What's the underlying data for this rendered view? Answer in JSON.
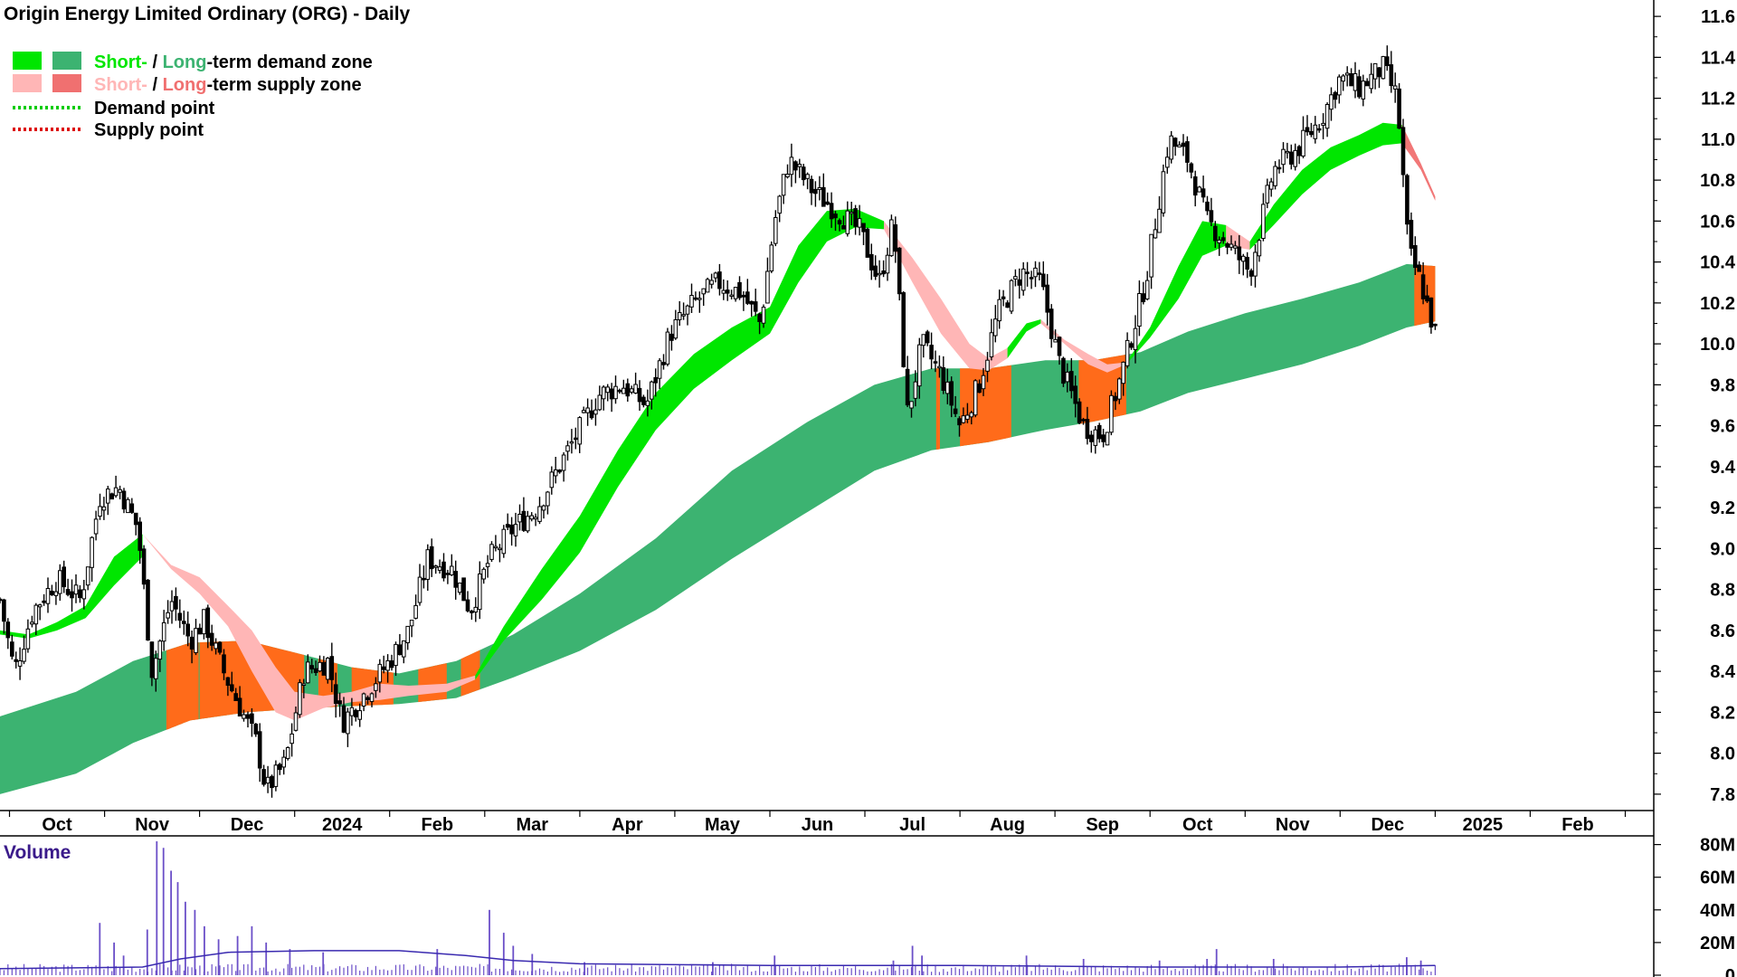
{
  "title": "Origin Energy Limited Ordinary (ORG) - Daily",
  "legend": {
    "demand_short": "Short-",
    "demand_sep": " / ",
    "demand_long": "Long",
    "demand_rest": "-term demand zone",
    "supply_short": "Short-",
    "supply_sep": " / ",
    "supply_long": "Long",
    "supply_rest": "-term supply zone",
    "demand_point": "Demand point",
    "supply_point": "Supply point"
  },
  "volume_label": "Volume",
  "colors": {
    "short_demand": "#00e600",
    "long_demand": "#3cb371",
    "short_supply": "#ffb6b6",
    "long_supply": "#f07070",
    "overlap_supply": "#ff6b1a",
    "demand_point": "#00cc00",
    "supply_point": "#dd0000",
    "candle": "#000000",
    "volume_bar": "#6b4fc8",
    "volume_avg": "#3a2ab0"
  },
  "chart_data": {
    "type": "candlestick",
    "title": "Origin Energy Limited Ordinary (ORG) - Daily",
    "x_tick_labels": [
      "Oct",
      "Nov",
      "Dec",
      "2024",
      "Feb",
      "Mar",
      "Apr",
      "May",
      "Jun",
      "Jul",
      "Aug",
      "Sep",
      "Oct",
      "Nov",
      "Dec",
      "2025",
      "Feb"
    ],
    "y_tick_labels": [
      "7.8",
      "8.0",
      "8.2",
      "8.4",
      "8.6",
      "8.8",
      "9.0",
      "9.2",
      "9.4",
      "9.6",
      "9.8",
      "10.0",
      "10.2",
      "10.4",
      "10.6",
      "10.8",
      "11.0",
      "11.2",
      "11.4",
      "11.6"
    ],
    "ylim": [
      7.72,
      11.68
    ],
    "x_range_months": [
      8.9,
      26.3
    ],
    "price_path": [
      {
        "t": 8.9,
        "p": 8.75
      },
      {
        "t": 9.05,
        "p": 8.4
      },
      {
        "t": 9.25,
        "p": 8.7
      },
      {
        "t": 9.5,
        "p": 8.85
      },
      {
        "t": 9.75,
        "p": 8.75
      },
      {
        "t": 9.95,
        "p": 9.25
      },
      {
        "t": 10.15,
        "p": 9.3
      },
      {
        "t": 10.35,
        "p": 9.1
      },
      {
        "t": 10.5,
        "p": 8.4
      },
      {
        "t": 10.7,
        "p": 8.75
      },
      {
        "t": 10.9,
        "p": 8.55
      },
      {
        "t": 11.05,
        "p": 8.65
      },
      {
        "t": 11.25,
        "p": 8.4
      },
      {
        "t": 11.6,
        "p": 8.05
      },
      {
        "t": 11.7,
        "p": 7.82
      },
      {
        "t": 11.9,
        "p": 7.95
      },
      {
        "t": 12.1,
        "p": 8.4
      },
      {
        "t": 12.35,
        "p": 8.45
      },
      {
        "t": 12.5,
        "p": 8.15
      },
      {
        "t": 12.75,
        "p": 8.3
      },
      {
        "t": 13.0,
        "p": 8.45
      },
      {
        "t": 13.2,
        "p": 8.6
      },
      {
        "t": 13.4,
        "p": 8.95
      },
      {
        "t": 13.65,
        "p": 8.9
      },
      {
        "t": 13.85,
        "p": 8.7
      },
      {
        "t": 14.05,
        "p": 8.95
      },
      {
        "t": 14.3,
        "p": 9.1
      },
      {
        "t": 14.55,
        "p": 9.2
      },
      {
        "t": 14.9,
        "p": 9.5
      },
      {
        "t": 15.2,
        "p": 9.75
      },
      {
        "t": 15.45,
        "p": 9.8
      },
      {
        "t": 15.7,
        "p": 9.7
      },
      {
        "t": 15.95,
        "p": 10.05
      },
      {
        "t": 16.2,
        "p": 10.2
      },
      {
        "t": 16.45,
        "p": 10.3
      },
      {
        "t": 16.7,
        "p": 10.25
      },
      {
        "t": 16.9,
        "p": 10.1
      },
      {
        "t": 17.05,
        "p": 10.6
      },
      {
        "t": 17.2,
        "p": 10.9
      },
      {
        "t": 17.45,
        "p": 10.75
      },
      {
        "t": 17.7,
        "p": 10.65
      },
      {
        "t": 17.95,
        "p": 10.55
      },
      {
        "t": 18.15,
        "p": 10.3
      },
      {
        "t": 18.3,
        "p": 10.6
      },
      {
        "t": 18.45,
        "p": 9.65
      },
      {
        "t": 18.6,
        "p": 10.0
      },
      {
        "t": 18.8,
        "p": 9.85
      },
      {
        "t": 19.0,
        "p": 9.6
      },
      {
        "t": 19.2,
        "p": 9.8
      },
      {
        "t": 19.4,
        "p": 10.15
      },
      {
        "t": 19.65,
        "p": 10.35
      },
      {
        "t": 19.85,
        "p": 10.3
      },
      {
        "t": 20.05,
        "p": 9.9
      },
      {
        "t": 20.3,
        "p": 9.6
      },
      {
        "t": 20.5,
        "p": 9.55
      },
      {
        "t": 20.7,
        "p": 9.85
      },
      {
        "t": 20.95,
        "p": 10.3
      },
      {
        "t": 21.2,
        "p": 11.0
      },
      {
        "t": 21.4,
        "p": 10.9
      },
      {
        "t": 21.6,
        "p": 10.6
      },
      {
        "t": 21.8,
        "p": 10.5
      },
      {
        "t": 22.05,
        "p": 10.35
      },
      {
        "t": 22.3,
        "p": 10.85
      },
      {
        "t": 22.55,
        "p": 10.95
      },
      {
        "t": 22.8,
        "p": 11.1
      },
      {
        "t": 23.0,
        "p": 11.3
      },
      {
        "t": 23.2,
        "p": 11.25
      },
      {
        "t": 23.45,
        "p": 11.35
      },
      {
        "t": 23.6,
        "p": 11.2
      },
      {
        "t": 23.72,
        "p": 10.45
      },
      {
        "t": 23.85,
        "p": 10.3
      },
      {
        "t": 24.0,
        "p": 10.05
      }
    ],
    "long_zone": [
      {
        "t": 8.9,
        "lo": 7.8,
        "hi": 8.18
      },
      {
        "t": 9.7,
        "lo": 7.9,
        "hi": 8.3
      },
      {
        "t": 10.3,
        "lo": 8.05,
        "hi": 8.45
      },
      {
        "t": 10.9,
        "lo": 8.16,
        "hi": 8.54
      },
      {
        "t": 11.5,
        "lo": 8.2,
        "hi": 8.55
      },
      {
        "t": 12.1,
        "lo": 8.22,
        "hi": 8.48
      },
      {
        "t": 12.6,
        "lo": 8.23,
        "hi": 8.42
      },
      {
        "t": 13.1,
        "lo": 8.24,
        "hi": 8.39
      },
      {
        "t": 13.7,
        "lo": 8.27,
        "hi": 8.45
      },
      {
        "t": 14.3,
        "lo": 8.37,
        "hi": 8.58
      },
      {
        "t": 15.0,
        "lo": 8.5,
        "hi": 8.78
      },
      {
        "t": 15.8,
        "lo": 8.7,
        "hi": 9.05
      },
      {
        "t": 16.6,
        "lo": 8.95,
        "hi": 9.38
      },
      {
        "t": 17.4,
        "lo": 9.18,
        "hi": 9.62
      },
      {
        "t": 18.1,
        "lo": 9.38,
        "hi": 9.8
      },
      {
        "t": 18.7,
        "lo": 9.48,
        "hi": 9.88
      },
      {
        "t": 19.3,
        "lo": 9.52,
        "hi": 9.88
      },
      {
        "t": 19.9,
        "lo": 9.58,
        "hi": 9.92
      },
      {
        "t": 20.4,
        "lo": 9.62,
        "hi": 9.92
      },
      {
        "t": 20.9,
        "lo": 9.67,
        "hi": 9.96
      },
      {
        "t": 21.4,
        "lo": 9.76,
        "hi": 10.06
      },
      {
        "t": 22.0,
        "lo": 9.83,
        "hi": 10.15
      },
      {
        "t": 22.6,
        "lo": 9.9,
        "hi": 10.22
      },
      {
        "t": 23.2,
        "lo": 9.99,
        "hi": 10.3
      },
      {
        "t": 23.7,
        "lo": 10.08,
        "hi": 10.39
      },
      {
        "t": 24.0,
        "lo": 10.11,
        "hi": 10.38
      }
    ],
    "short_demand_zones": [
      [
        {
          "t": 8.9,
          "lo": 8.58,
          "hi": 8.6
        },
        {
          "t": 9.2,
          "lo": 8.56,
          "hi": 8.58
        },
        {
          "t": 9.5,
          "lo": 8.6,
          "hi": 8.64
        },
        {
          "t": 9.8,
          "lo": 8.66,
          "hi": 8.72
        },
        {
          "t": 10.1,
          "lo": 8.82,
          "hi": 8.96
        },
        {
          "t": 10.4,
          "lo": 8.96,
          "hi": 9.07
        }
      ],
      [
        {
          "t": 13.9,
          "lo": 8.36,
          "hi": 8.38
        },
        {
          "t": 14.2,
          "lo": 8.55,
          "hi": 8.62
        },
        {
          "t": 14.6,
          "lo": 8.75,
          "hi": 8.9
        },
        {
          "t": 15.0,
          "lo": 8.98,
          "hi": 9.16
        },
        {
          "t": 15.4,
          "lo": 9.3,
          "hi": 9.48
        },
        {
          "t": 15.8,
          "lo": 9.58,
          "hi": 9.76
        },
        {
          "t": 16.2,
          "lo": 9.78,
          "hi": 9.95
        },
        {
          "t": 16.6,
          "lo": 9.92,
          "hi": 10.08
        },
        {
          "t": 17.0,
          "lo": 10.05,
          "hi": 10.18
        },
        {
          "t": 17.3,
          "lo": 10.3,
          "hi": 10.48
        },
        {
          "t": 17.6,
          "lo": 10.5,
          "hi": 10.65
        },
        {
          "t": 17.9,
          "lo": 10.57,
          "hi": 10.66
        },
        {
          "t": 18.2,
          "lo": 10.56,
          "hi": 10.6
        }
      ],
      [
        {
          "t": 19.5,
          "lo": 9.93,
          "hi": 9.98
        },
        {
          "t": 19.7,
          "lo": 10.06,
          "hi": 10.1
        },
        {
          "t": 19.85,
          "lo": 10.1,
          "hi": 10.12
        }
      ],
      [
        {
          "t": 20.75,
          "lo": 9.9,
          "hi": 9.91
        },
        {
          "t": 21.0,
          "lo": 10.03,
          "hi": 10.08
        },
        {
          "t": 21.3,
          "lo": 10.22,
          "hi": 10.38
        },
        {
          "t": 21.55,
          "lo": 10.43,
          "hi": 10.6
        },
        {
          "t": 21.8,
          "lo": 10.48,
          "hi": 10.58
        }
      ],
      [
        {
          "t": 22.05,
          "lo": 10.46,
          "hi": 10.5
        },
        {
          "t": 22.3,
          "lo": 10.58,
          "hi": 10.68
        },
        {
          "t": 22.6,
          "lo": 10.73,
          "hi": 10.85
        },
        {
          "t": 22.9,
          "lo": 10.85,
          "hi": 10.96
        },
        {
          "t": 23.2,
          "lo": 10.92,
          "hi": 11.02
        },
        {
          "t": 23.45,
          "lo": 10.97,
          "hi": 11.08
        },
        {
          "t": 23.65,
          "lo": 10.98,
          "hi": 11.07
        }
      ]
    ],
    "short_supply_zones": [
      [
        {
          "t": 10.4,
          "lo": 9.07,
          "hi": 9.07
        },
        {
          "t": 10.7,
          "lo": 8.9,
          "hi": 8.92
        },
        {
          "t": 11.0,
          "lo": 8.78,
          "hi": 8.86
        },
        {
          "t": 11.3,
          "lo": 8.62,
          "hi": 8.72
        },
        {
          "t": 11.55,
          "lo": 8.4,
          "hi": 8.6
        },
        {
          "t": 11.8,
          "lo": 8.2,
          "hi": 8.42
        },
        {
          "t": 12.0,
          "lo": 8.16,
          "hi": 8.3
        },
        {
          "t": 12.3,
          "lo": 8.22,
          "hi": 8.28
        },
        {
          "t": 12.6,
          "lo": 8.25,
          "hi": 8.3
        },
        {
          "t": 12.9,
          "lo": 8.26,
          "hi": 8.34
        },
        {
          "t": 13.2,
          "lo": 8.28,
          "hi": 8.33
        },
        {
          "t": 13.6,
          "lo": 8.3,
          "hi": 8.34
        },
        {
          "t": 13.9,
          "lo": 8.36,
          "hi": 8.38
        }
      ],
      [
        {
          "t": 18.2,
          "lo": 10.56,
          "hi": 10.6
        },
        {
          "t": 18.5,
          "lo": 10.3,
          "hi": 10.42
        },
        {
          "t": 18.8,
          "lo": 10.05,
          "hi": 10.22
        },
        {
          "t": 19.1,
          "lo": 9.88,
          "hi": 10.0
        },
        {
          "t": 19.3,
          "lo": 9.87,
          "hi": 9.93
        },
        {
          "t": 19.5,
          "lo": 9.93,
          "hi": 9.98
        }
      ],
      [
        {
          "t": 19.85,
          "lo": 10.1,
          "hi": 10.12
        },
        {
          "t": 20.1,
          "lo": 10.0,
          "hi": 10.02
        },
        {
          "t": 20.35,
          "lo": 9.9,
          "hi": 9.95
        },
        {
          "t": 20.55,
          "lo": 9.86,
          "hi": 9.9
        },
        {
          "t": 20.75,
          "lo": 9.9,
          "hi": 9.91
        }
      ],
      [
        {
          "t": 21.8,
          "lo": 10.48,
          "hi": 10.58
        },
        {
          "t": 22.05,
          "lo": 10.46,
          "hi": 10.5
        }
      ],
      [
        {
          "t": 23.65,
          "lo": 10.98,
          "hi": 11.07
        },
        {
          "t": 23.85,
          "lo": 10.85,
          "hi": 10.88
        },
        {
          "t": 24.0,
          "lo": 10.7,
          "hi": 10.72
        }
      ]
    ],
    "overlap_zones": [
      {
        "t0": 10.65,
        "t1": 11.0,
        "lo": 8.22,
        "hi": 8.53
      },
      {
        "t0": 11.0,
        "t1": 12.1,
        "lo": 8.22,
        "hi": 8.48
      },
      {
        "t0": 12.25,
        "t1": 12.45,
        "lo": 8.23,
        "hi": 8.46
      },
      {
        "t0": 12.6,
        "t1": 13.05,
        "lo": 8.24,
        "hi": 8.4
      },
      {
        "t0": 13.3,
        "t1": 13.6,
        "lo": 8.26,
        "hi": 8.42
      },
      {
        "t0": 13.75,
        "t1": 13.95,
        "lo": 8.27,
        "hi": 8.43
      },
      {
        "t0": 18.75,
        "t1": 18.8,
        "lo": 9.48,
        "hi": 9.88
      },
      {
        "t0": 19.0,
        "t1": 19.55,
        "lo": 9.52,
        "hi": 9.88
      },
      {
        "t0": 20.25,
        "t1": 20.75,
        "lo": 9.64,
        "hi": 9.92
      },
      {
        "t0": 23.78,
        "t1": 24.0,
        "lo": 10.09,
        "hi": 10.38
      }
    ],
    "volume": {
      "type": "bar",
      "label": "Volume",
      "tick_labels": [
        "80M",
        "60M",
        "40M",
        "20M",
        "0"
      ],
      "ylim": [
        0,
        82
      ],
      "spikes": [
        {
          "t": 9.95,
          "v": 32
        },
        {
          "t": 10.1,
          "v": 20
        },
        {
          "t": 10.2,
          "v": 12
        },
        {
          "t": 10.45,
          "v": 28
        },
        {
          "t": 10.55,
          "v": 82
        },
        {
          "t": 10.62,
          "v": 78
        },
        {
          "t": 10.7,
          "v": 64
        },
        {
          "t": 10.77,
          "v": 57
        },
        {
          "t": 10.85,
          "v": 45
        },
        {
          "t": 10.95,
          "v": 40
        },
        {
          "t": 11.05,
          "v": 30
        },
        {
          "t": 11.2,
          "v": 22
        },
        {
          "t": 11.4,
          "v": 24
        },
        {
          "t": 11.55,
          "v": 30
        },
        {
          "t": 11.7,
          "v": 20
        },
        {
          "t": 11.95,
          "v": 16
        },
        {
          "t": 12.3,
          "v": 14
        },
        {
          "t": 13.5,
          "v": 16
        },
        {
          "t": 14.05,
          "v": 40
        },
        {
          "t": 14.2,
          "v": 26
        },
        {
          "t": 14.3,
          "v": 18
        },
        {
          "t": 14.5,
          "v": 13
        },
        {
          "t": 15.05,
          "v": 8
        },
        {
          "t": 16.4,
          "v": 8
        },
        {
          "t": 17.05,
          "v": 12
        },
        {
          "t": 18.3,
          "v": 9
        },
        {
          "t": 18.5,
          "v": 18
        },
        {
          "t": 18.6,
          "v": 12
        },
        {
          "t": 19.7,
          "v": 12
        },
        {
          "t": 20.3,
          "v": 10
        },
        {
          "t": 21.1,
          "v": 9
        },
        {
          "t": 21.6,
          "v": 10
        },
        {
          "t": 21.7,
          "v": 16
        },
        {
          "t": 22.3,
          "v": 10
        },
        {
          "t": 23.7,
          "v": 11
        },
        {
          "t": 23.85,
          "v": 9
        }
      ],
      "average": [
        {
          "t": 8.9,
          "v": 4
        },
        {
          "t": 10.4,
          "v": 5
        },
        {
          "t": 10.8,
          "v": 10
        },
        {
          "t": 11.3,
          "v": 14
        },
        {
          "t": 12.2,
          "v": 15
        },
        {
          "t": 13.1,
          "v": 15
        },
        {
          "t": 13.8,
          "v": 12
        },
        {
          "t": 14.3,
          "v": 9
        },
        {
          "t": 15.0,
          "v": 7
        },
        {
          "t": 17.0,
          "v": 6
        },
        {
          "t": 19.0,
          "v": 6
        },
        {
          "t": 21.0,
          "v": 5
        },
        {
          "t": 23.0,
          "v": 5
        },
        {
          "t": 24.0,
          "v": 6
        }
      ]
    }
  }
}
